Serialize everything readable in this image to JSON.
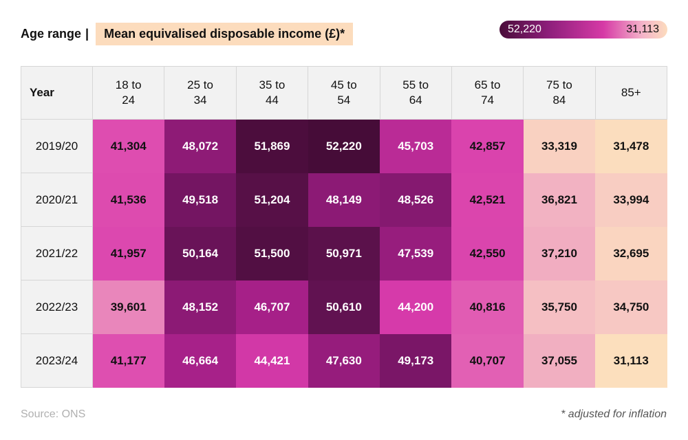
{
  "header": {
    "age_label": "Age range",
    "separator": "|",
    "metric_label": "Mean equivalised disposable income (£)*"
  },
  "scale": {
    "max_label": "52,220",
    "min_label": "31,113"
  },
  "colors": {
    "dark": "#4a0c3a",
    "mid": "#d63aa6",
    "light": "#fcdcbd"
  },
  "chart_data": {
    "type": "heatmap",
    "title": "Mean equivalised disposable income (£)*",
    "row_header": "Year",
    "columns": [
      "18 to\n24",
      "25 to\n34",
      "35 to\n44",
      "45 to\n54",
      "55 to\n64",
      "65 to\n74",
      "75 to\n84",
      "85+"
    ],
    "rows": [
      {
        "year": "2019/20",
        "values": [
          41304,
          48072,
          51869,
          52220,
          45703,
          42857,
          33319,
          31478
        ]
      },
      {
        "year": "2020/21",
        "values": [
          41536,
          49518,
          51204,
          48149,
          48526,
          42521,
          36821,
          33994
        ]
      },
      {
        "year": "2021/22",
        "values": [
          41957,
          50164,
          51500,
          50971,
          47539,
          42550,
          37210,
          32695
        ]
      },
      {
        "year": "2022/23",
        "values": [
          39601,
          48152,
          46707,
          50610,
          44200,
          40816,
          35750,
          34750
        ]
      },
      {
        "year": "2023/24",
        "values": [
          41177,
          46664,
          44421,
          47630,
          49173,
          40707,
          37055,
          31113
        ]
      }
    ],
    "color_scale": {
      "min": 31113,
      "max": 52220
    }
  },
  "footer": {
    "source": "Source: ONS",
    "footnote": "* adjusted for inflation"
  }
}
